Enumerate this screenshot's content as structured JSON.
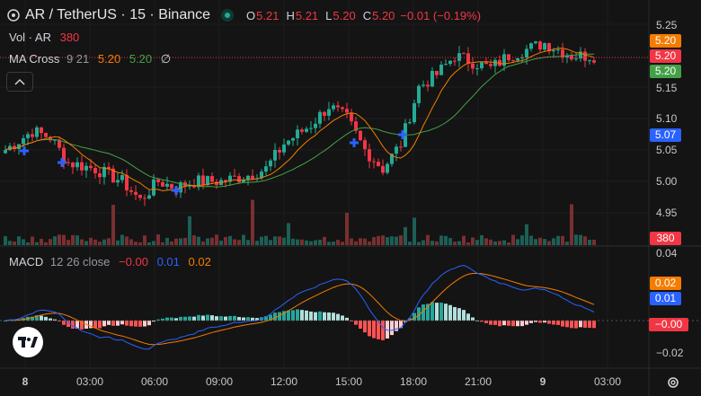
{
  "header": {
    "symbol": "AR / TetherUS · 15 · Binance",
    "ohlc": [
      {
        "k": "O",
        "v": "5.21"
      },
      {
        "k": "H",
        "v": "5.21"
      },
      {
        "k": "L",
        "v": "5.20"
      },
      {
        "k": "C",
        "v": "5.20"
      }
    ],
    "change": "−0.01 (−0.19%)"
  },
  "legend": {
    "vol_label": "Vol · AR",
    "vol_value": "380",
    "ma_label": "MA Cross",
    "ma_params": "9 21",
    "ma_fast_value": "5.20",
    "ma_slow_value": "5.20",
    "ma_visibility_glyph": "∅",
    "macd_label": "MACD",
    "macd_params": "12 26 close",
    "macd_hist_value": "−0.00",
    "macd_line_value": "0.01",
    "macd_signal_value": "0.02"
  },
  "price_axis": {
    "ticks": [
      "5.25",
      "5.15",
      "5.10",
      "5.05",
      "5.00",
      "4.95"
    ],
    "range": [
      4.925,
      5.262
    ]
  },
  "price_badges": {
    "ma_fast": "5.20",
    "last": "5.20",
    "ma_slow": "5.20",
    "cross": "5.07",
    "volume": "380"
  },
  "macd_axis": {
    "ticks": [
      "0.04",
      "−0.02"
    ],
    "range": [
      -0.028,
      0.044
    ]
  },
  "macd_badges": {
    "signal": "0.02",
    "macd": "0.01",
    "hist": "−0.00"
  },
  "time_axis": {
    "labels": [
      "8",
      "03:00",
      "06:00",
      "09:00",
      "12:00",
      "15:00",
      "18:00",
      "21:00",
      "9",
      "03:00"
    ]
  },
  "colors": {
    "up": "#22ab94",
    "down": "#f23645",
    "ma_fast": "#f57c00",
    "ma_slow": "#43a047",
    "macd": "#2962ff",
    "signal": "#f57c00",
    "cross": "#2962ff"
  },
  "icons": {
    "logo": "tradingview-logo-icon",
    "settings": "gear-icon",
    "collapse": "chevron-up-icon"
  }
}
